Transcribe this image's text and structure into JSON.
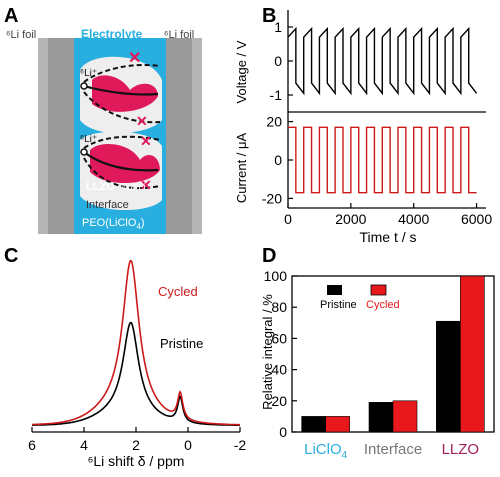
{
  "figure": {
    "panel_labels": [
      "A",
      "B",
      "C",
      "D"
    ]
  },
  "panel_a": {
    "left_foil": "⁶Li foil",
    "electrolyte": "Electrolyte",
    "right_foil": "⁶Li foil",
    "li_ion_top": "⁶Li⁺",
    "li_ion_bottom": "⁶Li⁺",
    "llzo_label": "LLZO",
    "exchange_label": "⁶Li/⁷Li",
    "interface_label": "Interface",
    "peo_label": "PEO(LiClO",
    "peo_sub": "4",
    "peo_close": ")",
    "colors": {
      "llzo": "#e0195a",
      "electrolyte": "#29aee0",
      "foil": "#9a9a9a",
      "interface": "#f0f0f0"
    }
  },
  "chart_data": [
    {
      "panel": "B-top",
      "type": "line",
      "ylabel": "Voltage / V",
      "xlim": [
        0,
        6300
      ],
      "ylim": [
        -1.5,
        1.5
      ],
      "yticks": [
        1,
        0,
        -1
      ],
      "series": [
        {
          "color": "#000000",
          "cycle_period_s": 500,
          "cycles": 12,
          "charge_start": 0.7,
          "charge_end": 0.95,
          "discharge_start": -0.65,
          "discharge_end": -0.95
        }
      ]
    },
    {
      "panel": "B-bottom",
      "type": "line",
      "xlabel": "Time t / s",
      "ylabel": "Current / μA",
      "xlim": [
        0,
        6300
      ],
      "ylim": [
        -25,
        25
      ],
      "yticks": [
        20,
        0,
        -20
      ],
      "xticks": [
        0,
        2000,
        4000,
        6000
      ],
      "series": [
        {
          "color": "#cc1a1a",
          "cycle_period_s": 500,
          "cycles": 12,
          "high": 17,
          "low": -17
        }
      ]
    },
    {
      "panel": "C",
      "type": "line",
      "xlabel": "⁶Li shift δ / ppm",
      "xlim": [
        6,
        -2
      ],
      "xticks": [
        6,
        4,
        2,
        0,
        -2
      ],
      "series": [
        {
          "name": "Cycled",
          "color": "#cc1a1a",
          "peaks": [
            {
              "center": 2.2,
              "height": 1.0,
              "width": 0.38
            },
            {
              "center": 0.3,
              "height": 0.18,
              "width": 0.12
            }
          ],
          "broad": {
            "center": 2.4,
            "height": 0.12,
            "width": 1.4
          }
        },
        {
          "name": "Pristine",
          "color": "#000000",
          "peaks": [
            {
              "center": 2.2,
              "height": 0.62,
              "width": 0.36
            },
            {
              "center": 0.3,
              "height": 0.17,
              "width": 0.12
            }
          ],
          "broad": {
            "center": 2.4,
            "height": 0.08,
            "width": 1.4
          }
        }
      ]
    },
    {
      "panel": "D",
      "type": "bar",
      "ylabel": "Relative integral / %",
      "ylim": [
        0,
        100
      ],
      "yticks": [
        0,
        20,
        40,
        60,
        80,
        100
      ],
      "categories": [
        "LiClO",
        "Interface",
        "LLZO"
      ],
      "category_sub": [
        "4",
        "",
        ""
      ],
      "category_colors": [
        "#29aee0",
        "#777777",
        "#a0205a"
      ],
      "series": [
        {
          "name": "Pristine",
          "color": "#000000",
          "values": [
            10,
            19,
            71
          ]
        },
        {
          "name": "Cycled",
          "color": "#e8191c",
          "values": [
            10,
            20,
            100
          ]
        }
      ]
    }
  ]
}
